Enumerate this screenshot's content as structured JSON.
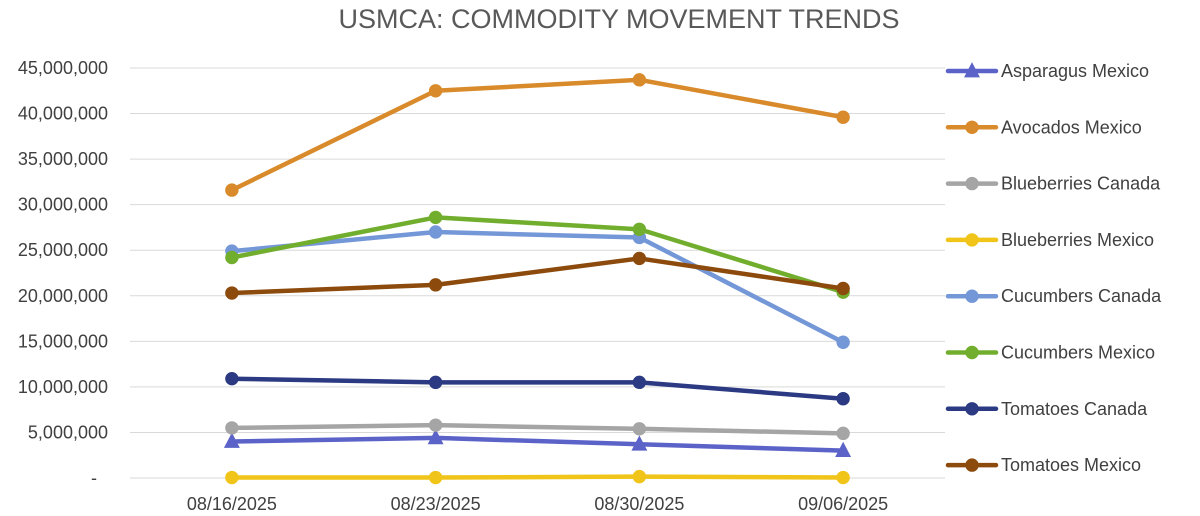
{
  "chart_data": {
    "type": "line",
    "title": "USMCA: COMMODITY MOVEMENT TRENDS",
    "xlabel": "",
    "ylabel": "",
    "categories": [
      "08/16/2025",
      "08/23/2025",
      "08/30/2025",
      "09/06/2025"
    ],
    "ylim": [
      0,
      45000000
    ],
    "y_ticks": [
      0,
      5000000,
      10000000,
      15000000,
      20000000,
      25000000,
      30000000,
      35000000,
      40000000,
      45000000
    ],
    "y_tick_labels": [
      "-",
      "5,000,000",
      "10,000,000",
      "15,000,000",
      "20,000,000",
      "25,000,000",
      "30,000,000",
      "35,000,000",
      "40,000,000",
      "45,000,000"
    ],
    "grid": true,
    "legend_position": "right",
    "series": [
      {
        "name": "Asparagus Mexico",
        "color": "#5b63c8",
        "marker": "triangle",
        "values": [
          4000000,
          4400000,
          3700000,
          3000000
        ]
      },
      {
        "name": "Avocados Mexico",
        "color": "#d98a2b",
        "marker": "circle",
        "values": [
          31600000,
          42500000,
          43700000,
          39600000
        ]
      },
      {
        "name": "Blueberries Canada",
        "color": "#a5a5a5",
        "marker": "circle",
        "values": [
          5500000,
          5800000,
          5400000,
          4900000
        ]
      },
      {
        "name": "Blueberries Mexico",
        "color": "#f0c419",
        "marker": "circle",
        "values": [
          50000,
          50000,
          150000,
          50000
        ]
      },
      {
        "name": "Cucumbers Canada",
        "color": "#7497d8",
        "marker": "circle",
        "values": [
          24900000,
          27000000,
          26400000,
          14900000
        ]
      },
      {
        "name": "Cucumbers Mexico",
        "color": "#72ae2e",
        "marker": "circle",
        "values": [
          24200000,
          28600000,
          27300000,
          20400000
        ]
      },
      {
        "name": "Tomatoes Canada",
        "color": "#2b3a82",
        "marker": "circle",
        "values": [
          10900000,
          10500000,
          10500000,
          8700000
        ]
      },
      {
        "name": "Tomatoes Mexico",
        "color": "#8c4a0c",
        "marker": "circle",
        "values": [
          20300000,
          21200000,
          24100000,
          20800000
        ]
      }
    ]
  }
}
